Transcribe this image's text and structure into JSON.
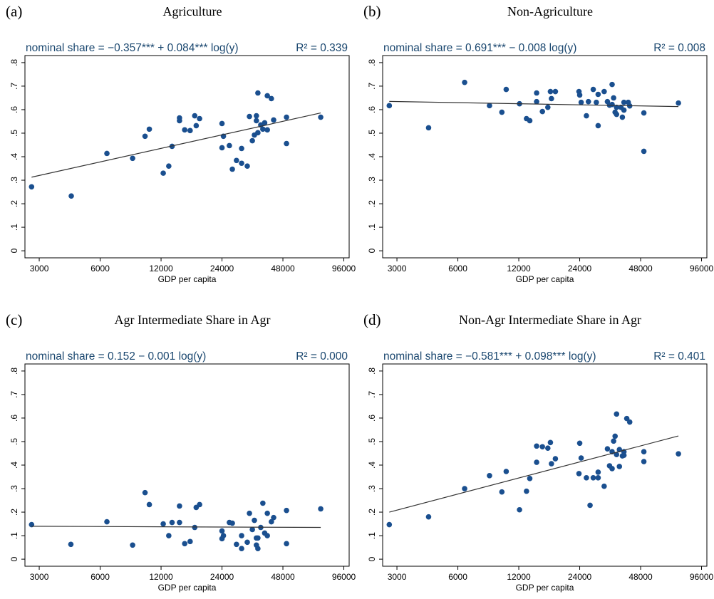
{
  "chart_data": [
    {
      "type": "scatter",
      "panel": "(a)",
      "title": "Agriculture",
      "equation": "nominal share = −0.357*** + 0.084*** log(y)",
      "r2": "R² = 0.339",
      "xlabel": "GDP per capita",
      "xscale": "log",
      "color": "#1a4f8f",
      "fit_color": "#333333",
      "xlim": [
        2550,
        102000
      ],
      "xticks": [
        3000,
        6000,
        12000,
        24000,
        48000,
        96000
      ],
      "ylim": [
        -0.03,
        0.83
      ],
      "yticks": [
        0,
        {
          "value": 0.1,
          "label": ".1"
        },
        {
          "value": 0.2,
          "label": ".2"
        },
        {
          "value": 0.3,
          "label": ".3"
        },
        {
          "value": 0.4,
          "label": ".4"
        },
        {
          "value": 0.5,
          "label": ".5"
        },
        {
          "value": 0.6,
          "label": ".6"
        },
        {
          "value": 0.7,
          "label": ".7"
        },
        {
          "value": 0.8,
          "label": ".8"
        }
      ],
      "x": [
        2750,
        4320,
        6480,
        8680,
        10000,
        10500,
        12300,
        13100,
        13600,
        14800,
        14800,
        15700,
        16700,
        17600,
        17900,
        18600,
        24000,
        24400,
        24000,
        26100,
        27000,
        28300,
        30000,
        30000,
        32000,
        32800,
        33900,
        34700,
        35500,
        35500,
        36100,
        36100,
        37300,
        38200,
        39000,
        40200,
        40200,
        42100,
        43200,
        50000,
        50000,
        73800
      ],
      "y": [
        0.272,
        0.233,
        0.414,
        0.393,
        0.487,
        0.517,
        0.33,
        0.36,
        0.444,
        0.565,
        0.553,
        0.514,
        0.511,
        0.574,
        0.532,
        0.562,
        0.541,
        0.487,
        0.438,
        0.447,
        0.347,
        0.384,
        0.435,
        0.372,
        0.36,
        0.571,
        0.468,
        0.492,
        0.574,
        0.553,
        0.671,
        0.502,
        0.535,
        0.517,
        0.544,
        0.514,
        0.659,
        0.647,
        0.556,
        0.568,
        0.456,
        0.568
      ],
      "fit": {
        "x": [
          2750,
          73800
        ],
        "y": [
          0.313,
          0.586
        ]
      }
    },
    {
      "type": "scatter",
      "panel": "(b)",
      "title": "Non-Agriculture",
      "equation": "nominal share = 0.691*** − 0.008 log(y)",
      "r2": "R² = 0.008",
      "xlabel": "GDP per capita",
      "xscale": "log",
      "color": "#1a4f8f",
      "fit_color": "#333333",
      "xlim": [
        2550,
        102000
      ],
      "xticks": [
        3000,
        6000,
        12000,
        24000,
        48000,
        96000
      ],
      "ylim": [
        -0.03,
        0.83
      ],
      "yticks": [
        0,
        {
          "value": 0.1,
          "label": ".1"
        },
        {
          "value": 0.2,
          "label": ".2"
        },
        {
          "value": 0.3,
          "label": ".3"
        },
        {
          "value": 0.4,
          "label": ".4"
        },
        {
          "value": 0.5,
          "label": ".5"
        },
        {
          "value": 0.6,
          "label": ".6"
        },
        {
          "value": 0.7,
          "label": ".7"
        },
        {
          "value": 0.8,
          "label": ".8"
        }
      ],
      "x": [
        2750,
        4300,
        6480,
        8600,
        9900,
        10400,
        12100,
        13100,
        13600,
        14700,
        14700,
        15700,
        16700,
        17200,
        17400,
        18200,
        23800,
        24000,
        24400,
        25900,
        26500,
        28000,
        29000,
        29600,
        29600,
        31700,
        32900,
        33700,
        34700,
        34700,
        35300,
        35900,
        36500,
        36500,
        38400,
        39000,
        39700,
        39700,
        41700,
        42400,
        49800,
        49800,
        73800
      ],
      "y": [
        0.617,
        0.523,
        0.716,
        0.617,
        0.589,
        0.686,
        0.625,
        0.562,
        0.553,
        0.671,
        0.634,
        0.592,
        0.61,
        0.677,
        0.647,
        0.677,
        0.677,
        0.662,
        0.631,
        0.574,
        0.634,
        0.686,
        0.631,
        0.532,
        0.665,
        0.677,
        0.634,
        0.619,
        0.707,
        0.622,
        0.65,
        0.589,
        0.61,
        0.58,
        0.61,
        0.568,
        0.598,
        0.631,
        0.631,
        0.616,
        0.586,
        0.423,
        0.628
      ],
      "fit": {
        "x": [
          2750,
          73800
        ],
        "y": [
          0.635,
          0.613
        ]
      }
    },
    {
      "type": "scatter",
      "panel": "(c)",
      "title": "Agr Intermediate Share in Agr",
      "equation": "nominal share = 0.152 − 0.001 log(y)",
      "r2": "R² = 0.000",
      "xlabel": "GDP per capita",
      "xscale": "log",
      "color": "#1a4f8f",
      "fit_color": "#333333",
      "xlim": [
        2550,
        102000
      ],
      "xticks": [
        3000,
        6000,
        12000,
        24000,
        48000,
        96000
      ],
      "ylim": [
        -0.03,
        0.83
      ],
      "yticks": [
        0,
        {
          "value": 0.1,
          "label": ".1"
        },
        {
          "value": 0.2,
          "label": ".2"
        },
        {
          "value": 0.3,
          "label": ".3"
        },
        {
          "value": 0.4,
          "label": ".4"
        },
        {
          "value": 0.5,
          "label": ".5"
        },
        {
          "value": 0.6,
          "label": ".6"
        },
        {
          "value": 0.7,
          "label": ".7"
        },
        {
          "value": 0.8,
          "label": ".8"
        }
      ],
      "x": [
        2750,
        4300,
        6480,
        8680,
        10000,
        10500,
        12300,
        13100,
        13600,
        14800,
        14800,
        15700,
        16700,
        17600,
        17900,
        18600,
        24000,
        24400,
        24000,
        26100,
        27000,
        28300,
        30000,
        30000,
        32000,
        32800,
        33900,
        34700,
        35500,
        35500,
        36100,
        36100,
        37300,
        38200,
        39000,
        40200,
        40200,
        42100,
        43200,
        50000,
        50000,
        73800
      ],
      "y": [
        0.147,
        0.063,
        0.159,
        0.06,
        0.283,
        0.232,
        0.15,
        0.1,
        0.156,
        0.226,
        0.156,
        0.066,
        0.075,
        0.135,
        0.22,
        0.232,
        0.12,
        0.1,
        0.087,
        0.156,
        0.153,
        0.063,
        0.1,
        0.045,
        0.072,
        0.195,
        0.126,
        0.165,
        0.09,
        0.06,
        0.09,
        0.045,
        0.135,
        0.238,
        0.111,
        0.195,
        0.1,
        0.159,
        0.177,
        0.207,
        0.066,
        0.214
      ],
      "fit": {
        "x": [
          2750,
          73800
        ],
        "y": [
          0.14,
          0.135
        ]
      }
    },
    {
      "type": "scatter",
      "panel": "(d)",
      "title": "Non-Agr Intermediate Share in Agr",
      "equation": "nominal share = −0.581*** + 0.098*** log(y)",
      "r2": "R² = 0.401",
      "xlabel": "GDP per capita",
      "xscale": "log",
      "color": "#1a4f8f",
      "fit_color": "#333333",
      "xlim": [
        2550,
        102000
      ],
      "xticks": [
        3000,
        6000,
        12000,
        24000,
        48000,
        96000
      ],
      "ylim": [
        -0.03,
        0.83
      ],
      "yticks": [
        0,
        {
          "value": 0.1,
          "label": ".1"
        },
        {
          "value": 0.2,
          "label": ".2"
        },
        {
          "value": 0.3,
          "label": ".3"
        },
        {
          "value": 0.4,
          "label": ".4"
        },
        {
          "value": 0.5,
          "label": ".5"
        },
        {
          "value": 0.6,
          "label": ".6"
        },
        {
          "value": 0.7,
          "label": ".7"
        },
        {
          "value": 0.8,
          "label": ".8"
        }
      ],
      "x": [
        2750,
        4300,
        6480,
        8600,
        9900,
        10400,
        12100,
        13100,
        13600,
        14700,
        14700,
        15700,
        16700,
        17200,
        17400,
        18200,
        23800,
        24000,
        24400,
        25900,
        27000,
        28000,
        29600,
        29600,
        31700,
        32900,
        33700,
        34700,
        34700,
        35300,
        35900,
        36500,
        36500,
        37700,
        37700,
        39000,
        39700,
        39700,
        41000,
        42400,
        49800,
        49800,
        73800
      ],
      "y": [
        0.147,
        0.18,
        0.3,
        0.355,
        0.286,
        0.373,
        0.21,
        0.289,
        0.343,
        0.481,
        0.412,
        0.478,
        0.472,
        0.496,
        0.406,
        0.427,
        0.364,
        0.493,
        0.43,
        0.346,
        0.229,
        0.346,
        0.346,
        0.37,
        0.31,
        0.469,
        0.397,
        0.385,
        0.457,
        0.502,
        0.523,
        0.617,
        0.445,
        0.466,
        0.394,
        0.439,
        0.457,
        0.442,
        0.598,
        0.583,
        0.457,
        0.415,
        0.448
      ],
      "fit": {
        "x": [
          2750,
          73800
        ],
        "y": [
          0.2,
          0.524
        ]
      }
    }
  ]
}
